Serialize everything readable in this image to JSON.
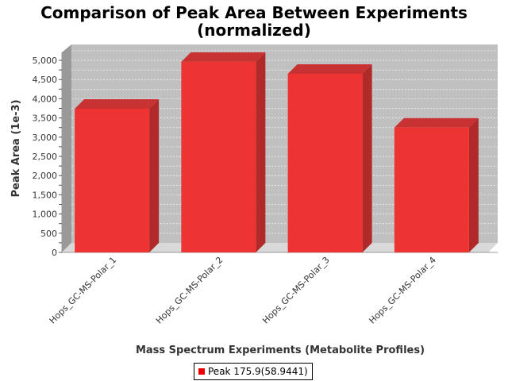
{
  "chart_data": {
    "type": "bar",
    "title": "Comparison of Peak Area Between Experiments",
    "subtitle": "(normalized)",
    "xlabel": "Mass Spectrum Experiments (Metabolite Profiles)",
    "ylabel": "Peak Area (1e-3)",
    "categories": [
      "Hops_GC-MS-Polar_1",
      "Hops_GC-MS-Polar_2",
      "Hops_GC-MS-Polar_3",
      "Hops_GC-MS-Polar_4"
    ],
    "series": [
      {
        "name": "Peak 175.9(58.9441)",
        "values": [
          3740,
          4960,
          4650,
          3250
        ],
        "color": "#ee0000"
      }
    ],
    "ylim": [
      0,
      5000
    ],
    "yticks": [
      "0",
      "250",
      "500",
      "750",
      "1,000",
      "1,250",
      "1,500",
      "1,750",
      "2,000",
      "2,250",
      "2,500",
      "2,750",
      "3,000",
      "3,250",
      "3,500",
      "3,750",
      "4,000",
      "4,250",
      "4,500",
      "4,750",
      "5,000"
    ],
    "grid": true,
    "legend_position": "bottom-center",
    "plot_background": "#c0c0c0"
  }
}
